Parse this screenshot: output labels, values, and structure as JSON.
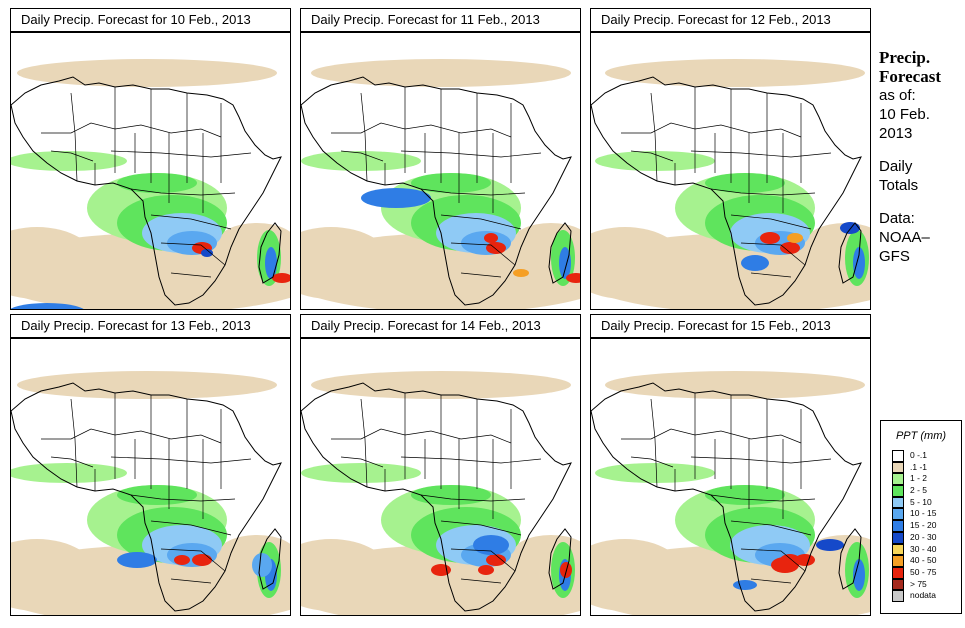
{
  "chart_data": [
    {
      "type": "heatmap",
      "title": "Daily Precip. Forecast for  10 Feb., 2013"
    },
    {
      "type": "heatmap",
      "title": "Daily Precip. Forecast for  11 Feb., 2013"
    },
    {
      "type": "heatmap",
      "title": "Daily Precip. Forecast for  12 Feb., 2013"
    },
    {
      "type": "heatmap",
      "title": "Daily Precip. Forecast for  13 Feb., 2013"
    },
    {
      "type": "heatmap",
      "title": "Daily Precip. Forecast for  14 Feb., 2013"
    },
    {
      "type": "heatmap",
      "title": "Daily Precip. Forecast for  15 Feb., 2013"
    }
  ],
  "sidebar": {
    "heading_line1": "Precip.",
    "heading_line2": "Forecast",
    "asof_label": "as of:",
    "date_line1": "10 Feb.",
    "date_line2": "2013",
    "totals_line1": "Daily",
    "totals_line2": "Totals",
    "data_line1": "Data:",
    "data_line2": "NOAA–",
    "data_line3": "GFS"
  },
  "legend": {
    "title": "PPT (mm)",
    "items": [
      {
        "label": "0 -.1",
        "color": "#ffffff"
      },
      {
        "label": ".1 -1",
        "color": "#e9d7b8"
      },
      {
        "label": "1 - 2",
        "color": "#a6f28f"
      },
      {
        "label": "2 - 5",
        "color": "#5fe45d"
      },
      {
        "label": "5 - 10",
        "color": "#8fcaf5"
      },
      {
        "label": "10 - 15",
        "color": "#5aa8f0"
      },
      {
        "label": "15 - 20",
        "color": "#2f7de5"
      },
      {
        "label": "20 - 30",
        "color": "#1549c9"
      },
      {
        "label": "30 - 40",
        "color": "#f7d65a"
      },
      {
        "label": "40 - 50",
        "color": "#f59f25"
      },
      {
        "label": "50 - 75",
        "color": "#e8240e"
      },
      {
        "label": "> 75",
        "color": "#a52a1e"
      },
      {
        "label": "nodata",
        "color": "#c8c8c8"
      }
    ]
  }
}
